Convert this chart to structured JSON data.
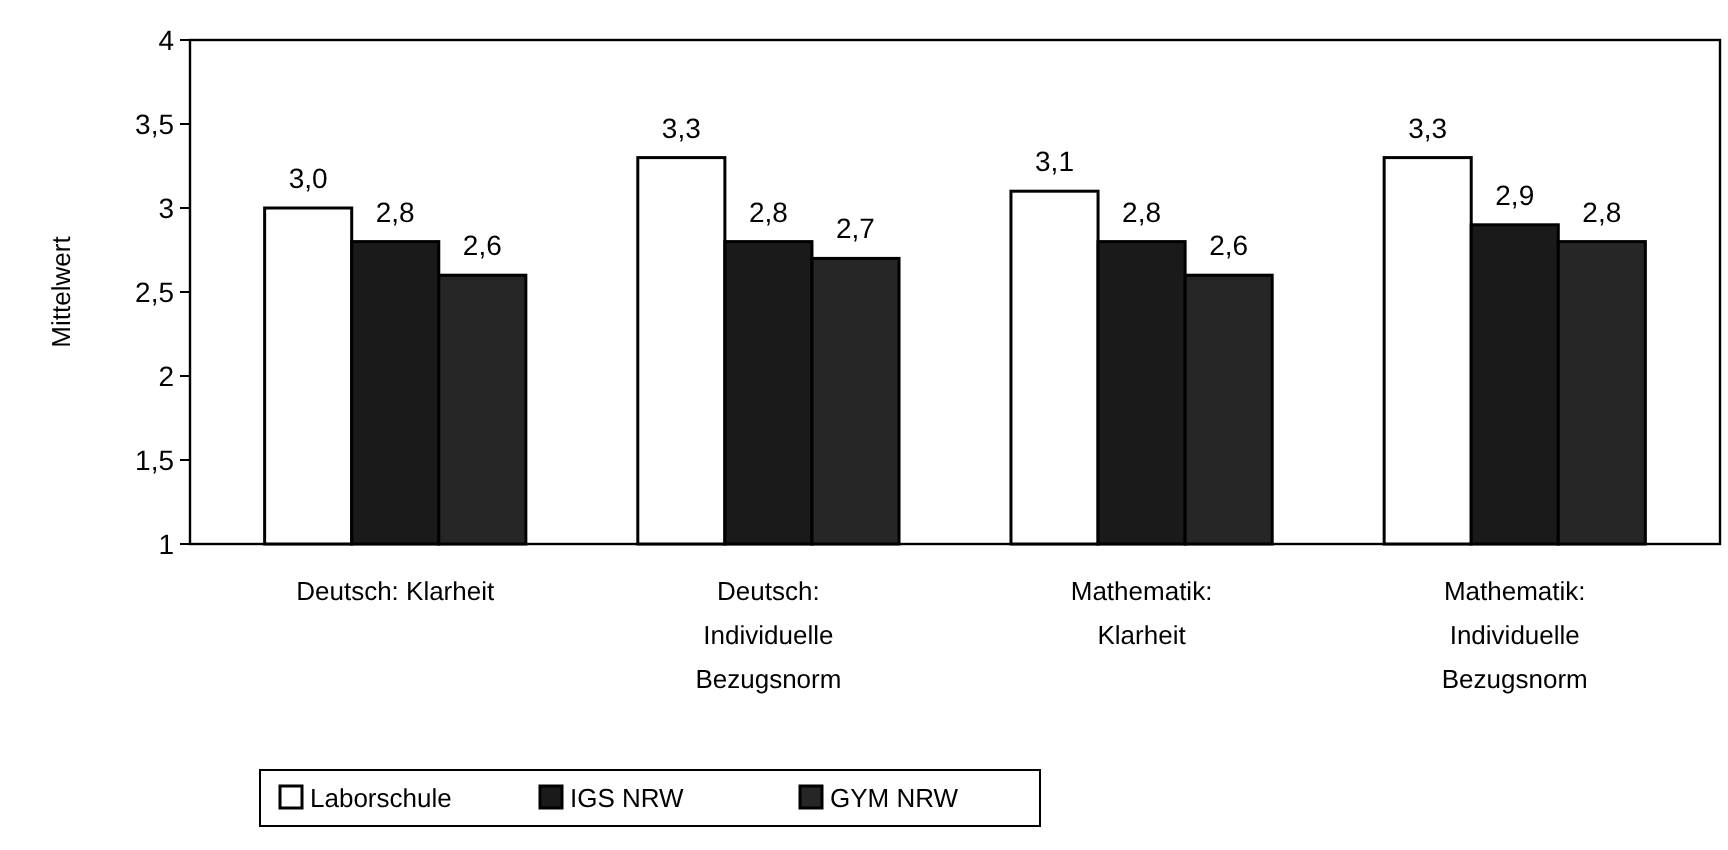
{
  "chart_data": {
    "type": "bar",
    "ylabel": "Mittelwert",
    "categories": [
      "Deutsch: Klarheit",
      "Deutsch: Individuelle Bezugsnorm",
      "Mathematik: Klarheit",
      "Mathematik: Individuelle Bezugsnorm"
    ],
    "series": [
      {
        "name": "Laborschule",
        "color": "#ffffff",
        "values": [
          3.0,
          3.3,
          3.1,
          3.3
        ],
        "value_labels": [
          "3,0",
          "3,3",
          "3,1",
          "3,3"
        ]
      },
      {
        "name": "IGS NRW",
        "color": "#1a1a1a",
        "values": [
          2.8,
          2.8,
          2.8,
          2.9
        ],
        "value_labels": [
          "2,8",
          "2,8",
          "2,8",
          "2,9"
        ]
      },
      {
        "name": "GYM NRW",
        "color": "#262626",
        "values": [
          2.6,
          2.7,
          2.6,
          2.8
        ],
        "value_labels": [
          "2,6",
          "2,7",
          "2,6",
          "2,8"
        ]
      }
    ],
    "ylim": [
      1,
      4
    ],
    "yticks": [
      1,
      {
        "value": 1.5,
        "label": "1,5"
      },
      2,
      {
        "value": 2.5,
        "label": "2,5"
      },
      3,
      {
        "value": 3.5,
        "label": "3,5"
      },
      4
    ],
    "grid": false,
    "legend": "bottom left"
  }
}
